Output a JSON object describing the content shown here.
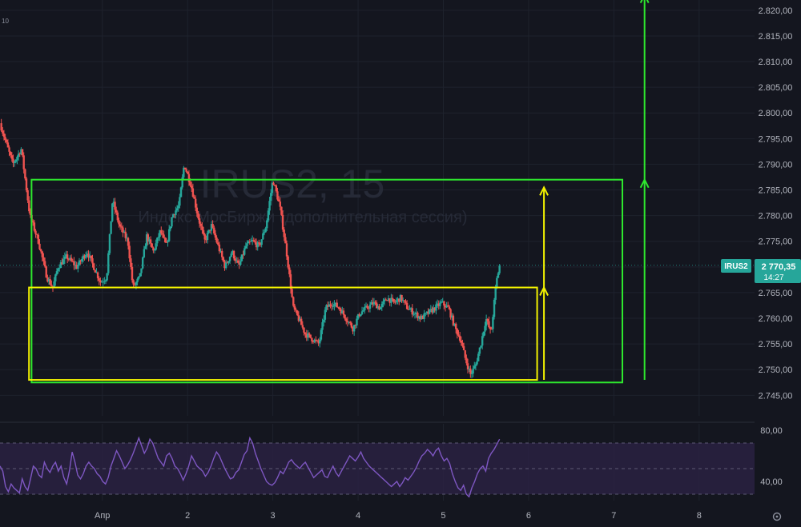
{
  "watermark": {
    "symbol": "IRUS2, 15",
    "subtitle": "Индекс МосБиржи (дополнительная сессия)"
  },
  "corner_label": "10",
  "price_tag": {
    "symbol": "IRUS2",
    "price": "2 770,35",
    "countdown": "14:27",
    "color": "#26a69a"
  },
  "settings_icon": "gear-icon",
  "colors": {
    "background": "#14161f",
    "up_candle": "#26a69a",
    "down_candle": "#ef5350",
    "range_box": "#2ee82e",
    "inner_box": "#f2f200",
    "rsi_line": "#7e57c2",
    "rsi_band": "#2a2244"
  },
  "chart_data": [
    {
      "type": "candlestick",
      "y_axis": {
        "range": [
          2741,
          2822
        ],
        "ticks": [
          "2.745,00",
          "2.750,00",
          "2.755,00",
          "2.760,00",
          "2.765,00",
          "2.770,00",
          "2.775,00",
          "2.780,00",
          "2.785,00",
          "2.790,00",
          "2.795,00",
          "2.800,00",
          "2.805,00",
          "2.810,00",
          "2.815,00",
          "2.820,00"
        ],
        "tick_values": [
          2745,
          2750,
          2755,
          2760,
          2765,
          2770,
          2775,
          2780,
          2785,
          2790,
          2795,
          2800,
          2805,
          2810,
          2815,
          2820
        ]
      },
      "x_axis": {
        "range": [
          -0.4,
          8.45
        ],
        "tick_labels": [
          "Апр",
          "2",
          "3",
          "4",
          "5",
          "6",
          "7",
          "8"
        ],
        "tick_positions": [
          0.8,
          1.8,
          2.8,
          3.8,
          4.8,
          5.8,
          6.8,
          7.8
        ]
      },
      "grid": true,
      "last_price": 2770.35,
      "price_path": [
        [
          -0.4,
          2798
        ],
        [
          -0.25,
          2790
        ],
        [
          -0.15,
          2793
        ],
        [
          -0.05,
          2780
        ],
        [
          0.05,
          2775
        ],
        [
          0.15,
          2768
        ],
        [
          0.22,
          2766
        ],
        [
          0.28,
          2770
        ],
        [
          0.38,
          2772
        ],
        [
          0.5,
          2770
        ],
        [
          0.62,
          2773
        ],
        [
          0.7,
          2770
        ],
        [
          0.78,
          2767
        ],
        [
          0.85,
          2768
        ],
        [
          0.92,
          2783
        ],
        [
          1.0,
          2778
        ],
        [
          1.1,
          2775
        ],
        [
          1.16,
          2766
        ],
        [
          1.24,
          2768
        ],
        [
          1.32,
          2776
        ],
        [
          1.4,
          2773
        ],
        [
          1.48,
          2777
        ],
        [
          1.55,
          2774
        ],
        [
          1.62,
          2780
        ],
        [
          1.7,
          2782
        ],
        [
          1.76,
          2790
        ],
        [
          1.84,
          2786
        ],
        [
          1.92,
          2780
        ],
        [
          2.0,
          2775
        ],
        [
          2.08,
          2778
        ],
        [
          2.16,
          2774
        ],
        [
          2.24,
          2770
        ],
        [
          2.32,
          2773
        ],
        [
          2.4,
          2770
        ],
        [
          2.48,
          2774
        ],
        [
          2.56,
          2775
        ],
        [
          2.64,
          2774
        ],
        [
          2.72,
          2778
        ],
        [
          2.8,
          2787
        ],
        [
          2.88,
          2782
        ],
        [
          2.96,
          2773
        ],
        [
          3.04,
          2762
        ],
        [
          3.1,
          2760
        ],
        [
          3.18,
          2757
        ],
        [
          3.26,
          2756
        ],
        [
          3.34,
          2755
        ],
        [
          3.42,
          2762
        ],
        [
          3.5,
          2763
        ],
        [
          3.58,
          2762
        ],
        [
          3.66,
          2760
        ],
        [
          3.74,
          2758
        ],
        [
          3.82,
          2761
        ],
        [
          3.9,
          2762
        ],
        [
          3.98,
          2763
        ],
        [
          4.06,
          2762
        ],
        [
          4.14,
          2764
        ],
        [
          4.22,
          2763
        ],
        [
          4.3,
          2764
        ],
        [
          4.38,
          2762
        ],
        [
          4.46,
          2761
        ],
        [
          4.54,
          2760
        ],
        [
          4.62,
          2761
        ],
        [
          4.7,
          2762
        ],
        [
          4.78,
          2763
        ],
        [
          4.86,
          2762
        ],
        [
          4.94,
          2758
        ],
        [
          5.0,
          2756
        ],
        [
          5.06,
          2752
        ],
        [
          5.12,
          2749
        ],
        [
          5.18,
          2751
        ],
        [
          5.24,
          2755
        ],
        [
          5.3,
          2760
        ],
        [
          5.36,
          2757
        ],
        [
          5.42,
          2767
        ],
        [
          5.46,
          2770.35
        ]
      ]
    },
    {
      "type": "line",
      "name": "",
      "y_axis": {
        "range": [
          25,
          85
        ],
        "ticks": [
          "40,00",
          "80,00"
        ],
        "tick_values": [
          40,
          80
        ]
      },
      "band": [
        30,
        70
      ],
      "middle": 50,
      "values": [
        52,
        48,
        36,
        32,
        38,
        35,
        33,
        31,
        42,
        36,
        33,
        42,
        52,
        50,
        45,
        43,
        55,
        50,
        47,
        52,
        55,
        48,
        52,
        43,
        38,
        48,
        63,
        55,
        45,
        42,
        46,
        52,
        55,
        52,
        50,
        46,
        44,
        40,
        38,
        43,
        52,
        58,
        64,
        60,
        55,
        50,
        53,
        57,
        62,
        68,
        74,
        68,
        62,
        66,
        73,
        70,
        64,
        58,
        55,
        52,
        60,
        62,
        58,
        52,
        50,
        46,
        41,
        46,
        52,
        60,
        56,
        52,
        50,
        48,
        44,
        47,
        52,
        58,
        63,
        60,
        55,
        50,
        46,
        42,
        43,
        47,
        49,
        55,
        61,
        64,
        74,
        70,
        62,
        56,
        50,
        45,
        40,
        38,
        37,
        39,
        43,
        48,
        46,
        50,
        55,
        57,
        54,
        52,
        50,
        53,
        55,
        51,
        47,
        43,
        45,
        47,
        49,
        44,
        43,
        48,
        52,
        47,
        44,
        48,
        52,
        56,
        60,
        58,
        56,
        59,
        63,
        58,
        55,
        52,
        50,
        48,
        46,
        44,
        42,
        40,
        38,
        36,
        38,
        40,
        36,
        39,
        43,
        41,
        44,
        47,
        51,
        56,
        60,
        62,
        65,
        63,
        60,
        64,
        66,
        60,
        56,
        58,
        54,
        46,
        40,
        35,
        33,
        37,
        30,
        28,
        35,
        40,
        46,
        50,
        52,
        48,
        58,
        62,
        65,
        69,
        73
      ]
    }
  ],
  "annotations": {
    "green_range_box": {
      "x": [
        -0.03,
        6.9
      ],
      "y": [
        2747.5,
        2787
      ]
    },
    "yellow_box": {
      "x": [
        -0.06,
        5.9
      ],
      "y": [
        2748,
        2766
      ]
    },
    "yellow_arrow_1": {
      "x": 5.98,
      "y": [
        2748,
        2766
      ]
    },
    "yellow_arrow_2": {
      "x": 5.98,
      "y": [
        2766,
        2785.5
      ]
    },
    "green_arrow_1": {
      "x": 7.16,
      "y": [
        2748,
        2787
      ]
    },
    "green_arrow_2": {
      "x": 7.16,
      "y": [
        2787,
        2823
      ]
    }
  }
}
